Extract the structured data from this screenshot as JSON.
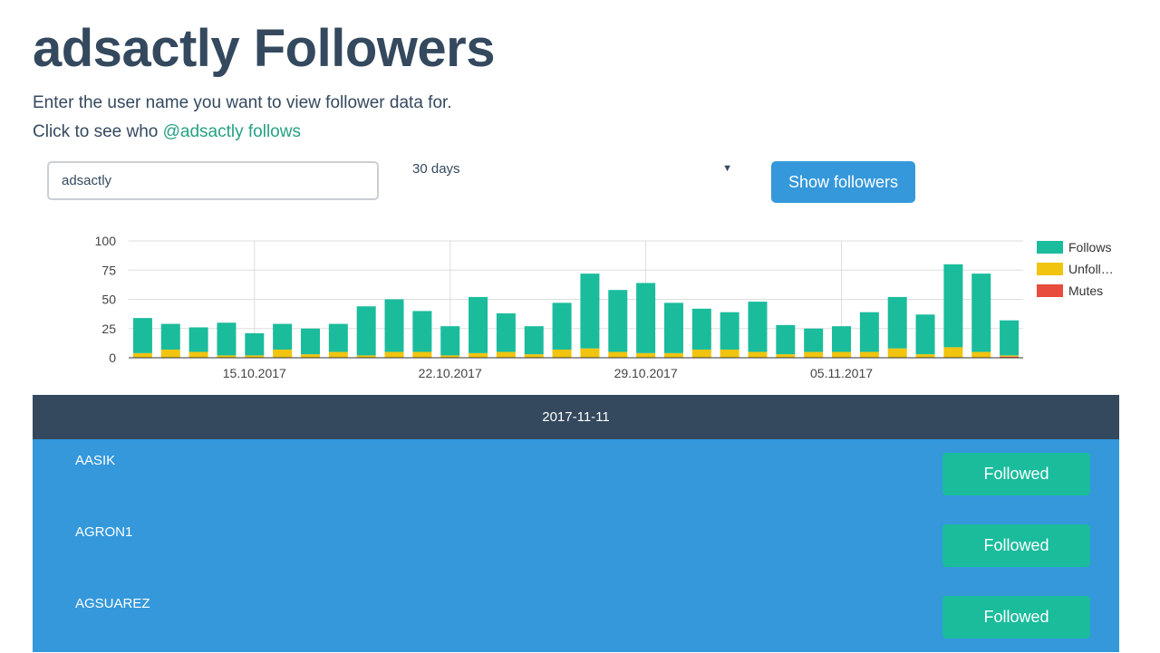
{
  "page": {
    "title": "adsactly Followers",
    "intro": "Enter the user name you want to view follower data for.",
    "follows_prefix": "Click to see who ",
    "follows_link": "@adsactly follows"
  },
  "form": {
    "username_value": "adsactly",
    "range_value": "30 days",
    "submit_label": "Show followers"
  },
  "chart_data": {
    "type": "bar",
    "stacked": true,
    "categories": [
      "2017-10-11",
      "2017-10-12",
      "2017-10-13",
      "2017-10-14",
      "2017-10-15",
      "2017-10-16",
      "2017-10-17",
      "2017-10-18",
      "2017-10-19",
      "2017-10-20",
      "2017-10-21",
      "2017-10-22",
      "2017-10-23",
      "2017-10-24",
      "2017-10-25",
      "2017-10-26",
      "2017-10-27",
      "2017-10-28",
      "2017-10-29",
      "2017-10-30",
      "2017-10-31",
      "2017-11-01",
      "2017-11-02",
      "2017-11-03",
      "2017-11-04",
      "2017-11-05",
      "2017-11-06",
      "2017-11-07",
      "2017-11-08",
      "2017-11-09",
      "2017-11-10",
      "2017-11-11"
    ],
    "x_tick_labels": [
      "15.10.2017",
      "22.10.2017",
      "29.10.2017",
      "05.11.2017"
    ],
    "series": [
      {
        "name": "Follows",
        "color": "#1abc9c",
        "values": [
          30,
          22,
          21,
          28,
          19,
          22,
          22,
          24,
          42,
          45,
          35,
          25,
          48,
          33,
          24,
          40,
          64,
          53,
          60,
          43,
          35,
          32,
          43,
          25,
          20,
          22,
          34,
          44,
          34,
          71,
          67,
          30
        ]
      },
      {
        "name": "Unfollows",
        "color": "#f1c40f",
        "values": [
          4,
          7,
          5,
          2,
          2,
          7,
          3,
          5,
          2,
          5,
          5,
          2,
          4,
          5,
          3,
          7,
          8,
          5,
          4,
          4,
          7,
          7,
          5,
          3,
          5,
          5,
          5,
          8,
          3,
          9,
          5,
          1
        ]
      },
      {
        "name": "Mutes",
        "color": "#e74c3c",
        "values": [
          0,
          0,
          0,
          0,
          0,
          0,
          0,
          0,
          0,
          0,
          0,
          0,
          0,
          0,
          0,
          0,
          0,
          0,
          0,
          0,
          0,
          0,
          0,
          0,
          0,
          0,
          0,
          0,
          0,
          0,
          0,
          1
        ]
      }
    ],
    "legend_labels": [
      "Follows",
      "Unfoll…",
      "Mutes"
    ],
    "legend_position": "right",
    "ylim": [
      0,
      100
    ],
    "yticks": [
      0,
      25,
      50,
      75,
      100
    ],
    "grid": true
  },
  "date_header": "2017-11-11",
  "followers": [
    {
      "name": "AASIK",
      "status": "Followed"
    },
    {
      "name": "AGRON1",
      "status": "Followed"
    },
    {
      "name": "AGSUAREZ",
      "status": "Followed"
    }
  ]
}
